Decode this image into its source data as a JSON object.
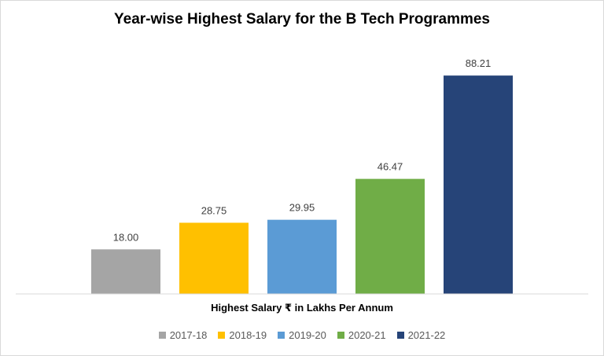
{
  "chart_data": {
    "type": "bar",
    "title": "Year-wise Highest Salary for the B Tech Programmes",
    "xlabel": "Highest Salary ₹ in  Lakhs Per Annum",
    "ylabel": "",
    "ylim": [
      0,
      100
    ],
    "grid": false,
    "legend_position": "bottom",
    "categories": [
      "2017-18",
      "2018-19",
      "2019-20",
      "2020-21",
      "2021-22"
    ],
    "values": [
      18.0,
      28.75,
      29.95,
      46.47,
      88.21
    ],
    "value_labels": [
      "18.00",
      "28.75",
      "29.95",
      "46.47",
      "88.21"
    ],
    "colors": [
      "#a5a5a5",
      "#ffc000",
      "#5b9bd5",
      "#70ad47",
      "#264478"
    ]
  }
}
